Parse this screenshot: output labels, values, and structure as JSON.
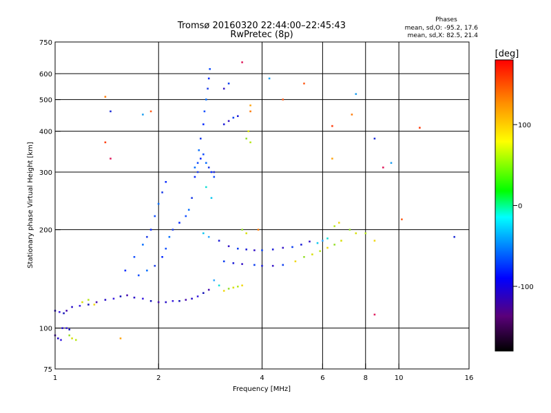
{
  "chart_data": {
    "type": "scatter",
    "title": "Tromsø 20160320 22:44:00–22:45:43",
    "subtitle": "RwPretec (8p)",
    "stats": {
      "heading": "Phases",
      "line_o": "mean, sd,O:  -95.2, 17.6",
      "line_x": "mean, sd,X:   82.5, 21.4"
    },
    "xlabel": "Frequency [MHz]",
    "ylabel": "Stationary phase Virtual Height [km]",
    "x_scale": "log",
    "y_scale": "log",
    "xlim": [
      1,
      16
    ],
    "ylim": [
      75,
      750
    ],
    "x_ticks": [
      1,
      2,
      4,
      6,
      8,
      10,
      16
    ],
    "x_tick_labels": [
      "1",
      "2",
      "4",
      "6",
      "8",
      "10",
      "16"
    ],
    "y_ticks": [
      75,
      100,
      200,
      300,
      400,
      500,
      600,
      750
    ],
    "y_tick_labels": [
      "75",
      "100",
      "200",
      "300",
      "400",
      "500",
      "600",
      "750"
    ],
    "grid_x": [
      2,
      4,
      6,
      8,
      10
    ],
    "grid_y": [
      100,
      200,
      300,
      400,
      500,
      600
    ],
    "grid": true,
    "colorbar": {
      "label": "[deg]",
      "range": [
        -180,
        180
      ],
      "ticks": [
        100,
        0,
        -100
      ],
      "tick_labels": [
        "100",
        "0",
        "-100"
      ]
    },
    "series": [
      {
        "color_class": "dark-blue-purple",
        "points": [
          [
            1.0,
            113
          ],
          [
            1.03,
            112
          ],
          [
            1.06,
            111
          ],
          [
            1.08,
            113
          ],
          [
            1.12,
            116
          ],
          [
            1.18,
            117
          ],
          [
            1.25,
            118
          ],
          [
            1.32,
            120
          ],
          [
            1.4,
            122
          ],
          [
            1.48,
            123
          ],
          [
            1.55,
            125
          ],
          [
            1.62,
            126
          ],
          [
            1.7,
            124
          ],
          [
            1.8,
            123
          ],
          [
            1.9,
            121
          ],
          [
            2.0,
            120
          ],
          [
            2.1,
            120
          ],
          [
            2.2,
            121
          ],
          [
            2.3,
            121
          ],
          [
            2.4,
            122
          ],
          [
            2.5,
            123
          ],
          [
            2.6,
            125
          ],
          [
            2.7,
            128
          ],
          [
            2.8,
            131
          ],
          [
            1.05,
            100
          ],
          [
            1.08,
            100
          ],
          [
            1.1,
            99
          ],
          [
            1.0,
            95
          ],
          [
            1.02,
            93
          ],
          [
            1.04,
            92
          ]
        ]
      },
      {
        "color_class": "blue",
        "points": [
          [
            1.6,
            150
          ],
          [
            1.7,
            165
          ],
          [
            1.8,
            180
          ],
          [
            1.85,
            190
          ],
          [
            1.9,
            200
          ],
          [
            1.95,
            220
          ],
          [
            2.0,
            240
          ],
          [
            2.05,
            260
          ],
          [
            2.1,
            280
          ],
          [
            1.75,
            145
          ],
          [
            1.85,
            150
          ],
          [
            1.95,
            155
          ],
          [
            2.05,
            165
          ],
          [
            2.1,
            175
          ],
          [
            2.15,
            190
          ],
          [
            2.2,
            200
          ],
          [
            2.3,
            210
          ],
          [
            2.4,
            220
          ],
          [
            2.45,
            230
          ],
          [
            2.5,
            250
          ],
          [
            2.55,
            290
          ],
          [
            2.6,
            320
          ],
          [
            2.62,
            350
          ],
          [
            2.65,
            380
          ],
          [
            2.7,
            420
          ],
          [
            2.72,
            460
          ],
          [
            2.75,
            500
          ],
          [
            2.78,
            540
          ],
          [
            2.8,
            580
          ],
          [
            2.82,
            620
          ],
          [
            2.55,
            310
          ],
          [
            2.6,
            300
          ],
          [
            2.65,
            330
          ],
          [
            2.7,
            340
          ],
          [
            2.75,
            320
          ],
          [
            2.8,
            310
          ],
          [
            2.85,
            300
          ],
          [
            2.9,
            290
          ]
        ]
      },
      {
        "color_class": "blue-purple",
        "points": [
          [
            3.0,
            185
          ],
          [
            3.2,
            178
          ],
          [
            3.4,
            175
          ],
          [
            3.6,
            174
          ],
          [
            3.8,
            173
          ],
          [
            4.0,
            173
          ],
          [
            4.3,
            174
          ],
          [
            4.6,
            176
          ],
          [
            4.9,
            177
          ],
          [
            5.2,
            180
          ],
          [
            5.5,
            184
          ],
          [
            3.1,
            160
          ],
          [
            3.3,
            158
          ],
          [
            3.5,
            157
          ],
          [
            3.8,
            156
          ],
          [
            4.0,
            155
          ],
          [
            4.3,
            155
          ],
          [
            4.6,
            156
          ],
          [
            3.1,
            420
          ],
          [
            3.2,
            430
          ],
          [
            3.3,
            440
          ],
          [
            3.4,
            445
          ],
          [
            3.1,
            540
          ],
          [
            3.2,
            560
          ]
        ]
      },
      {
        "color_class": "yellow-green",
        "points": [
          [
            1.2,
            120
          ],
          [
            1.25,
            122
          ],
          [
            1.3,
            118
          ],
          [
            1.1,
            95
          ],
          [
            1.12,
            93
          ],
          [
            1.15,
            92
          ],
          [
            3.1,
            130
          ],
          [
            3.2,
            132
          ],
          [
            3.3,
            133
          ],
          [
            3.4,
            134
          ],
          [
            3.5,
            135
          ],
          [
            3.6,
            380
          ],
          [
            3.65,
            400
          ],
          [
            3.7,
            370
          ],
          [
            5.0,
            160
          ],
          [
            5.3,
            165
          ],
          [
            5.6,
            168
          ],
          [
            5.9,
            172
          ],
          [
            6.2,
            176
          ],
          [
            6.5,
            180
          ],
          [
            6.8,
            185
          ],
          [
            6.5,
            205
          ],
          [
            6.7,
            210
          ],
          [
            7.2,
            200
          ],
          [
            7.5,
            195
          ],
          [
            8.0,
            195
          ],
          [
            8.5,
            185
          ],
          [
            3.5,
            200
          ],
          [
            3.6,
            195
          ]
        ]
      },
      {
        "color_class": "cyan",
        "points": [
          [
            2.7,
            195
          ],
          [
            2.8,
            190
          ],
          [
            2.75,
            270
          ],
          [
            2.85,
            250
          ],
          [
            2.9,
            140
          ],
          [
            3.0,
            135
          ],
          [
            5.8,
            182
          ],
          [
            6.0,
            185
          ],
          [
            6.2,
            188
          ]
        ]
      },
      {
        "color_class": "orange-red",
        "points": [
          [
            1.4,
            510
          ],
          [
            1.4,
            370
          ],
          [
            3.7,
            480
          ],
          [
            3.7,
            460
          ],
          [
            6.4,
            415
          ],
          [
            6.4,
            330
          ],
          [
            7.3,
            450
          ],
          [
            11.5,
            410
          ],
          [
            1.55,
            93
          ],
          [
            3.9,
            200
          ]
        ]
      },
      {
        "color_class": "sparse",
        "points": [
          [
            1.45,
            460
          ],
          [
            1.45,
            330
          ],
          [
            1.8,
            450
          ],
          [
            1.9,
            460
          ],
          [
            2.9,
            300
          ],
          [
            3.5,
            650
          ],
          [
            4.2,
            580
          ],
          [
            4.6,
            500
          ],
          [
            8.5,
            380
          ],
          [
            9.0,
            310
          ],
          [
            9.5,
            320
          ],
          [
            10.2,
            215
          ],
          [
            14.5,
            190
          ],
          [
            8.5,
            110
          ],
          [
            7.5,
            520
          ],
          [
            5.3,
            560
          ]
        ]
      }
    ]
  }
}
